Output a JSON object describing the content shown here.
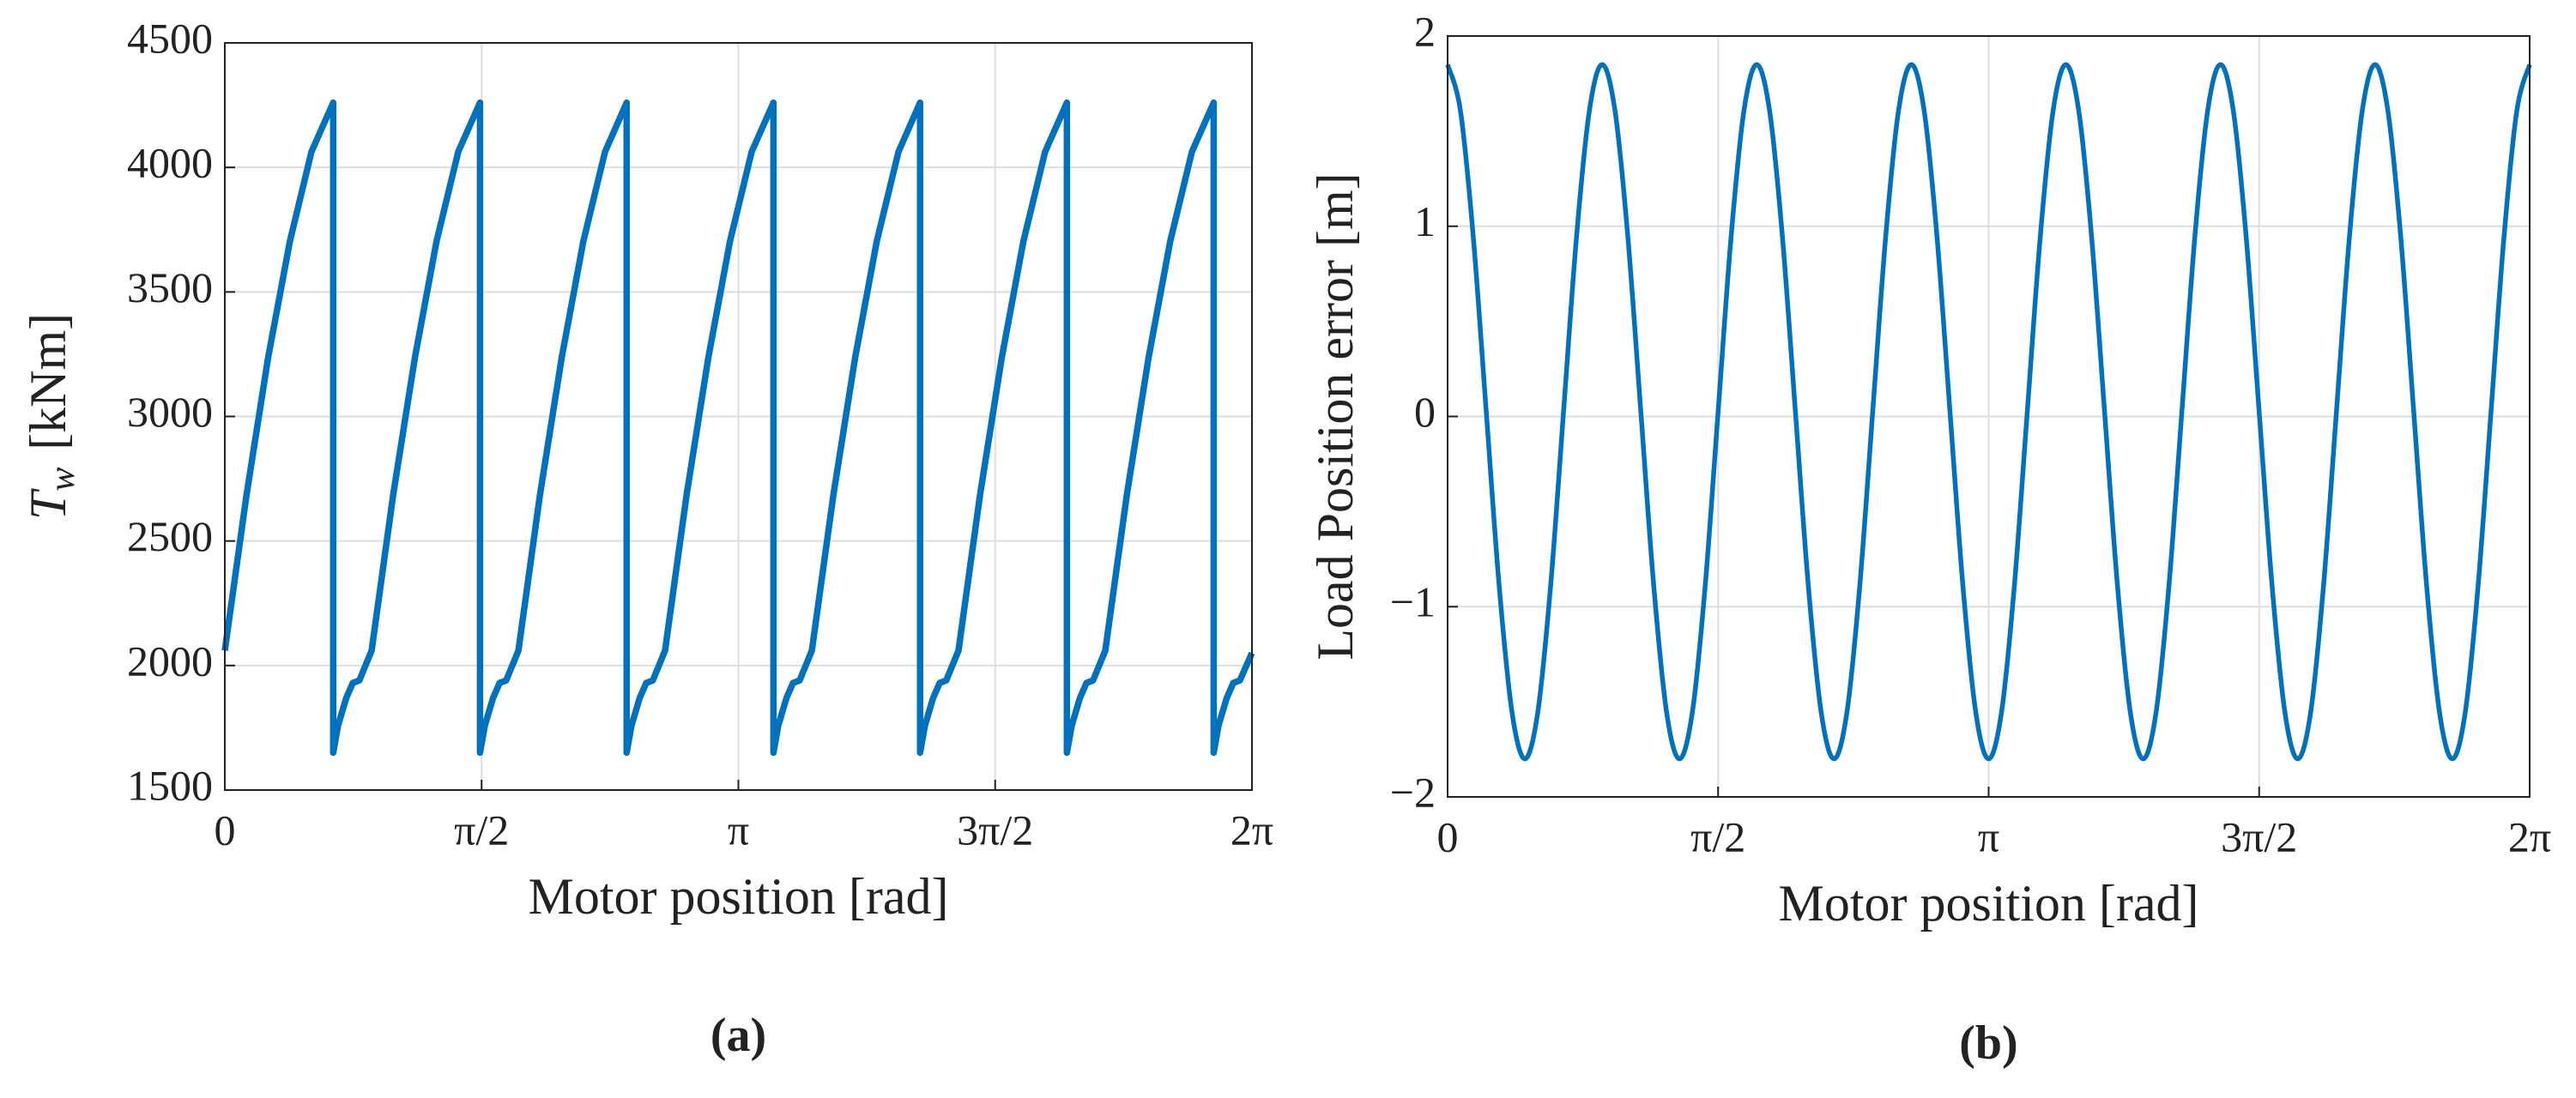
{
  "chart_data": [
    {
      "type": "line",
      "panel_label": "(a)",
      "xlabel": "Motor position [rad]",
      "ylabel": [
        "T",
        "w",
        "[kNm]"
      ],
      "color": "#0072bd",
      "grid": true,
      "xlim": [
        0,
        6.2832
      ],
      "ylim": [
        1500,
        4500
      ],
      "xticks": [
        0,
        {
          "value": 1.5708,
          "label": "π/2"
        },
        {
          "value": 3.1416,
          "label": "π"
        },
        {
          "value": 4.7124,
          "label": "3π/2"
        },
        {
          "value": 6.2832,
          "label": "2π"
        }
      ],
      "yticks": [
        1500,
        2000,
        2500,
        3000,
        3500,
        4000,
        4500
      ],
      "x": [
        0,
        0.133,
        0.265,
        0.398,
        0.53,
        0.663,
        0.663,
        0.693,
        0.743,
        0.783,
        0.823,
        0.898,
        1.03,
        1.163,
        1.295,
        1.428,
        1.561,
        1.561,
        1.591,
        1.641,
        1.681,
        1.721,
        1.796,
        1.928,
        2.061,
        2.193,
        2.326,
        2.458,
        2.458,
        2.488,
        2.538,
        2.578,
        2.618,
        2.693,
        2.825,
        2.958,
        3.09,
        3.223,
        3.356,
        3.356,
        3.386,
        3.436,
        3.476,
        3.516,
        3.591,
        3.723,
        3.856,
        3.988,
        4.121,
        4.253,
        4.253,
        4.283,
        4.333,
        4.373,
        4.413,
        4.488,
        4.62,
        4.753,
        4.885,
        5.018,
        5.151,
        5.151,
        5.181,
        5.231,
        5.271,
        5.311,
        5.386,
        5.518,
        5.651,
        5.783,
        5.916,
        6.049,
        6.049,
        6.079,
        6.129,
        6.169,
        6.209,
        6.283
      ],
      "values": [
        2060,
        2686,
        3237,
        3703,
        4063,
        4260,
        1650,
        1760,
        1870,
        1930,
        1940,
        2060,
        2686,
        3237,
        3703,
        4063,
        4260,
        1650,
        1760,
        1870,
        1930,
        1940,
        2060,
        2686,
        3237,
        3703,
        4063,
        4260,
        1650,
        1760,
        1870,
        1930,
        1940,
        2060,
        2686,
        3237,
        3703,
        4063,
        4260,
        1650,
        1760,
        1870,
        1930,
        1940,
        2060,
        2686,
        3237,
        3703,
        4063,
        4260,
        1650,
        1760,
        1870,
        1930,
        1940,
        2060,
        2686,
        3237,
        3703,
        4063,
        4260,
        1650,
        1760,
        1870,
        1930,
        1940,
        2060,
        2686,
        3237,
        3703,
        4063,
        4260,
        1650,
        1760,
        1870,
        1930,
        1940,
        2050
      ]
    },
    {
      "type": "line",
      "panel_label": "(b)",
      "xlabel": "Motor position [rad]",
      "ylabel": "Load Position error [m]",
      "color": "#0072bd",
      "grid": true,
      "xlim": [
        0,
        6.2832
      ],
      "ylim": [
        -2,
        2
      ],
      "xticks": [
        0,
        {
          "value": 1.5708,
          "label": "π/2"
        },
        {
          "value": 3.1416,
          "label": "π"
        },
        {
          "value": 4.7124,
          "label": "3π/2"
        },
        {
          "value": 6.2832,
          "label": "2π"
        }
      ],
      "yticks": [
        {
          "value": -2,
          "label": "−2"
        },
        {
          "value": -1,
          "label": "−1"
        },
        0,
        1,
        2
      ],
      "x": [
        0,
        0.0748,
        0.1496,
        0.2244,
        0.2992,
        0.374,
        0.4488,
        0.5236,
        0.5984,
        0.6732,
        0.748,
        0.8228,
        0.8976,
        0.9724,
        1.0472,
        1.122,
        1.1968,
        1.2716,
        1.3464,
        1.4212,
        1.496,
        1.5708,
        1.6456,
        1.7204,
        1.7952,
        1.87,
        1.9448,
        2.0196,
        2.0944,
        2.1692,
        2.244,
        2.3188,
        2.3936,
        2.4684,
        2.5432,
        2.618,
        2.6928,
        2.7676,
        2.8424,
        2.9172,
        2.992,
        3.0668,
        3.1416,
        3.2164,
        3.2912,
        3.366,
        3.4408,
        3.5156,
        3.5904,
        3.6652,
        3.74,
        3.8148,
        3.8896,
        3.9644,
        4.0392,
        4.114,
        4.1888,
        4.2636,
        4.3384,
        4.4132,
        4.488,
        4.5628,
        4.6376,
        4.7124,
        4.7872,
        4.862,
        4.9368,
        5.0116,
        5.0864,
        5.1612,
        5.236,
        5.3108,
        5.3856,
        5.4604,
        5.5352,
        5.61,
        5.6848,
        5.7596,
        5.8344,
        5.9092,
        5.984,
        6.0588,
        6.1336,
        6.2084,
        6.2832
      ],
      "values": [
        1.85,
        1.605,
        0.938,
        0.025,
        -0.888,
        -1.555,
        -1.8,
        -1.555,
        -0.888,
        0.025,
        0.938,
        1.605,
        1.85,
        1.605,
        0.938,
        0.025,
        -0.888,
        -1.555,
        -1.8,
        -1.555,
        -0.888,
        0.025,
        0.938,
        1.605,
        1.85,
        1.605,
        0.938,
        0.025,
        -0.888,
        -1.555,
        -1.8,
        -1.555,
        -0.888,
        0.025,
        0.938,
        1.605,
        1.85,
        1.605,
        0.938,
        0.025,
        -0.888,
        -1.555,
        -1.8,
        -1.555,
        -0.888,
        0.025,
        0.938,
        1.605,
        1.85,
        1.605,
        0.938,
        0.025,
        -0.888,
        -1.555,
        -1.8,
        -1.555,
        -0.888,
        0.025,
        0.938,
        1.605,
        1.85,
        1.605,
        0.938,
        0.025,
        -0.888,
        -1.555,
        -1.8,
        -1.555,
        -0.888,
        0.025,
        0.938,
        1.605,
        1.85,
        1.605,
        0.938,
        0.025,
        -0.888,
        -1.555,
        -1.8,
        -1.555,
        -0.888,
        0.025,
        0.938,
        1.605,
        1.85
      ]
    }
  ]
}
